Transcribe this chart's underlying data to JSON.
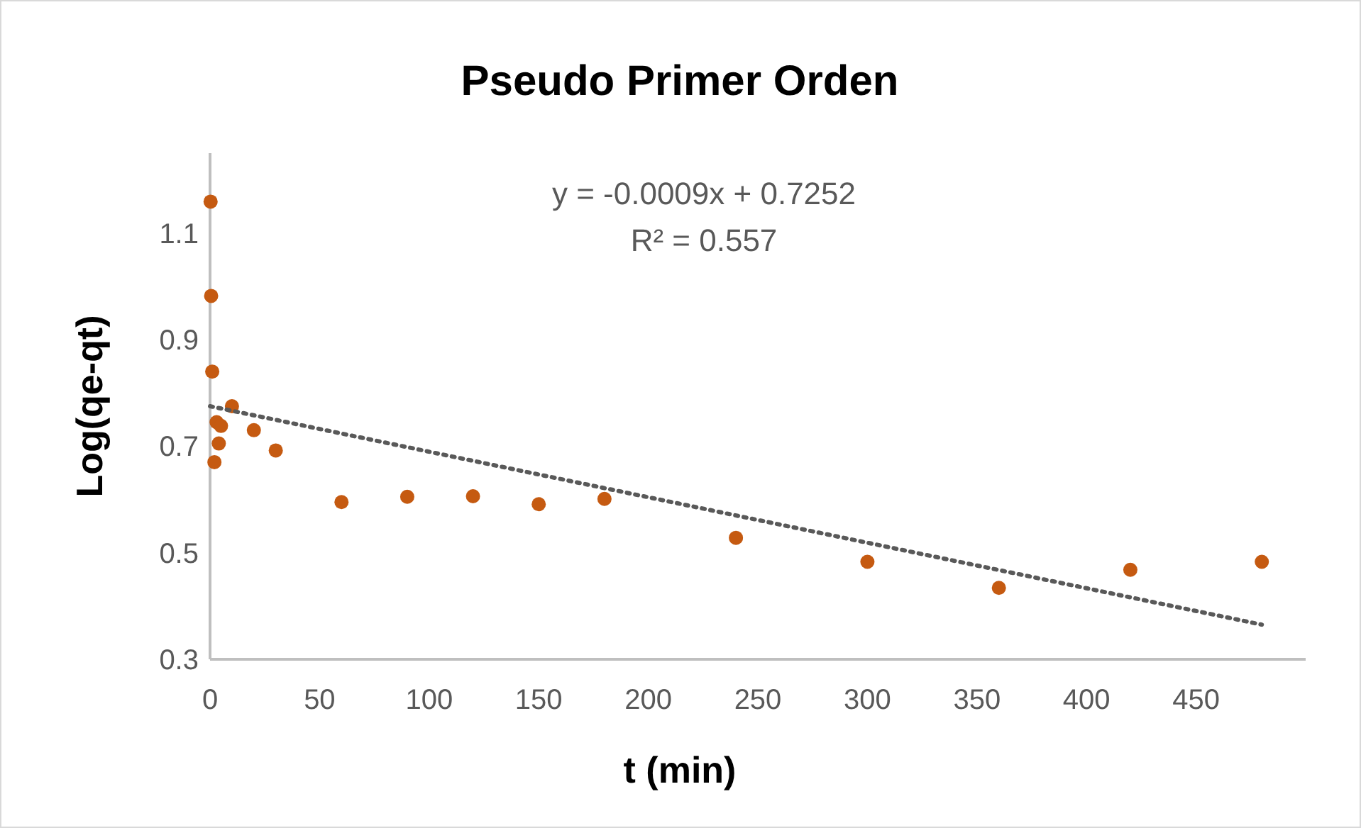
{
  "chart_data": {
    "type": "scatter",
    "title": "Pseudo Primer Orden",
    "xlabel": "t (min)",
    "ylabel": "Log(qe-qt)",
    "annotations": [
      "y = -0.0009x + 0.7252",
      "R² = 0.557"
    ],
    "xlim": [
      0,
      500
    ],
    "xticks": [
      0,
      50,
      100,
      150,
      200,
      250,
      300,
      350,
      400,
      450
    ],
    "ylim": [
      0.3,
      1.25
    ],
    "yticks": [
      0.3,
      0.5,
      0.7,
      0.9,
      1.1
    ],
    "grid": false,
    "series": [
      {
        "color": "#c55a11",
        "marker": "circle",
        "x": [
          0.25,
          0.5,
          1,
          2,
          3,
          4,
          5,
          10,
          20,
          30,
          60,
          90,
          120,
          150,
          180,
          240,
          300,
          360,
          420,
          480
        ],
        "values": [
          1.159,
          0.982,
          0.84,
          0.67,
          0.745,
          0.705,
          0.738,
          0.775,
          0.73,
          0.692,
          0.595,
          0.605,
          0.606,
          0.591,
          0.601,
          0.528,
          0.483,
          0.434,
          0.468,
          0.483
        ]
      },
      {
        "type": "line",
        "color": "#595959",
        "line_style": "dotted",
        "x": [
          0,
          480
        ],
        "values": [
          0.775,
          0.365
        ]
      }
    ]
  }
}
